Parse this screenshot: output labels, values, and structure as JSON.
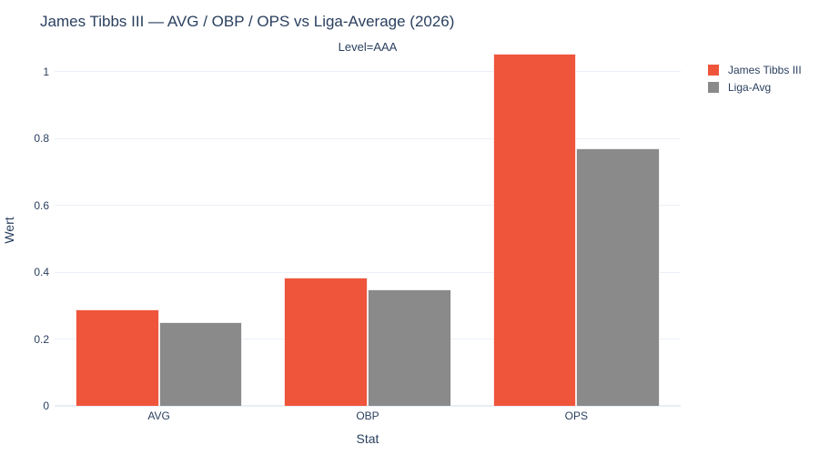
{
  "chart": {
    "title": "James Tibbs III — AVG / OBP / OPS vs Liga-Average (2026)",
    "facet_label": "Level=AAA",
    "xlabel": "Stat",
    "ylabel": "Wert"
  },
  "chart_data": {
    "type": "bar",
    "title": "James Tibbs III — AVG / OBP / OPS vs Liga-Average (2026)",
    "subtitle": "Level=AAA",
    "categories": [
      "AVG",
      "OBP",
      "OPS"
    ],
    "series": [
      {
        "name": "James Tibbs III",
        "color": "#EF553B",
        "values": [
          0.29,
          0.383,
          1.053
        ]
      },
      {
        "name": "Liga-Avg",
        "color": "#8A8A8A",
        "values": [
          0.25,
          0.35,
          0.772
        ]
      }
    ],
    "xlabel": "Stat",
    "ylabel": "Wert",
    "ylim": [
      0,
      1.057
    ],
    "yticks": [
      0,
      0.2,
      0.4,
      0.6,
      0.8,
      1
    ],
    "grid": true,
    "legend_position": "right",
    "colors": {
      "text": "#2a3f5f",
      "gridline": "#ebf0f8",
      "background": "#ffffff"
    }
  }
}
